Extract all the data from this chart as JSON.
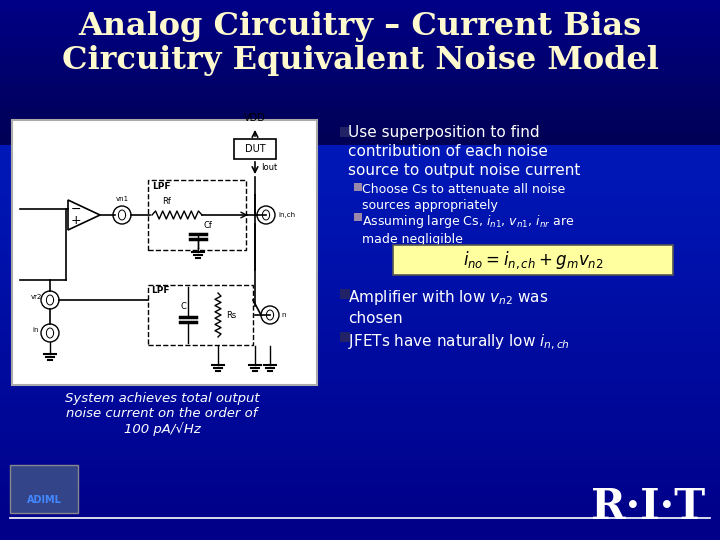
{
  "title_line1": "Analog Circuitry – Current Bias",
  "title_line2": "Circuitry Equivalent Noise Model",
  "title_color": "#FFFACD",
  "bg_gradient_top": "#000055",
  "bg_gradient_bottom": "#0033BB",
  "bullet_color": "#9999CC",
  "sub_bullet_color": "#AA99BB",
  "text_color": "white",
  "bullet1": "Use superposition to find\ncontribution of each noise\nsource to output noise current",
  "sub_bullet1": "Choose Cs to attenuate all noise\nsources appropriately",
  "sub_bullet2_pre": "Assuming large Cs, ",
  "sub_bullet2_post": " are\nmade negligible",
  "equation": "i_{no} = i_{n,ch} + g_m v_{n2}",
  "bullet2_pre": "Amplifier with low ",
  "bullet2_post": " was\nchosen",
  "bullet3_pre": "JFETs have naturally low ",
  "caption": "System achieves total output\nnoise current on the order of\n100 pA/√Hz",
  "rit_text": "R·I·T",
  "eq_bg": "#FFFFA0"
}
